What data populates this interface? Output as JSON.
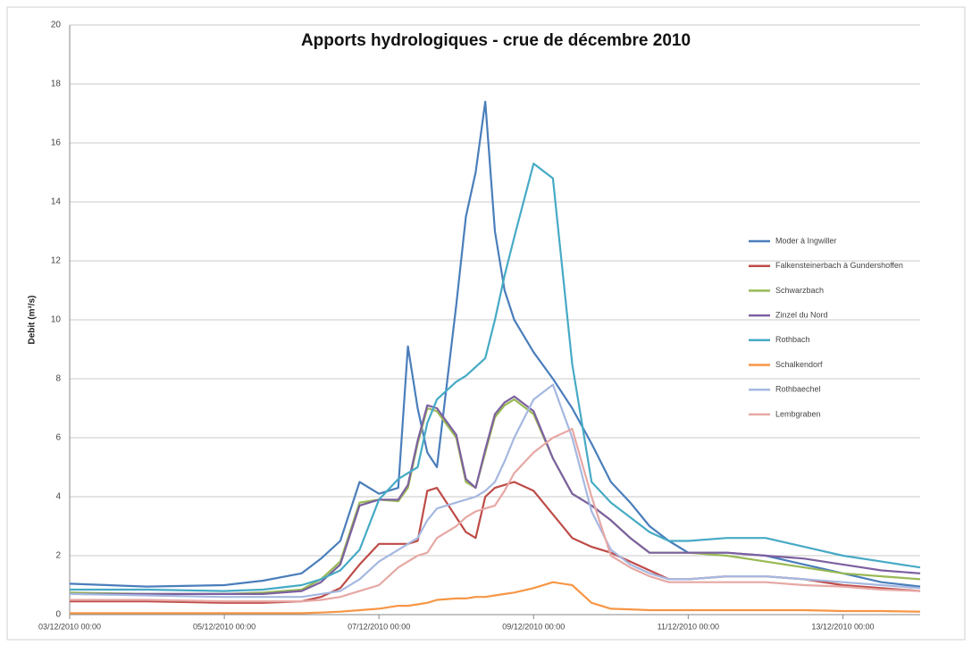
{
  "chart_data": {
    "type": "line",
    "title": "Apports hydrologiques - crue de décembre 2010",
    "y_label": "Debit (m³/s)",
    "x": [
      "03/12/2010 00:00",
      "04/12/2010 00:00",
      "05/12/2010 00:00",
      "05/12/2010 12:00",
      "06/12/2010 00:00",
      "06/12/2010 06:00",
      "06/12/2010 12:00",
      "06/12/2010 18:00",
      "07/12/2010 00:00",
      "07/12/2010 06:00",
      "07/12/2010 09:00",
      "07/12/2010 12:00",
      "07/12/2010 15:00",
      "07/12/2010 18:00",
      "08/12/2010 00:00",
      "08/12/2010 03:00",
      "08/12/2010 06:00",
      "08/12/2010 09:00",
      "08/12/2010 12:00",
      "08/12/2010 15:00",
      "08/12/2010 18:00",
      "09/12/2010 00:00",
      "09/12/2010 06:00",
      "09/12/2010 12:00",
      "09/12/2010 18:00",
      "10/12/2010 00:00",
      "10/12/2010 06:00",
      "10/12/2010 12:00",
      "10/12/2010 18:00",
      "11/12/2010 00:00",
      "11/12/2010 12:00",
      "12/12/2010 00:00",
      "12/12/2010 12:00",
      "13/12/2010 00:00",
      "13/12/2010 12:00",
      "14/12/2010 00:00"
    ],
    "xlim": [
      "03/12/2010 00:00",
      "14/12/2010 00:00"
    ],
    "xticks": [
      "03/12/2010 00:00",
      "05/12/2010 00:00",
      "07/12/2010 00:00",
      "09/12/2010 00:00",
      "11/12/2010 00:00",
      "13/12/2010 00:00"
    ],
    "ylim": [
      0,
      20
    ],
    "yticks": [
      0,
      2,
      4,
      6,
      8,
      10,
      12,
      14,
      16,
      18,
      20
    ],
    "grid": true,
    "legend": "right",
    "series": [
      {
        "name": "Moder à Ingwiller",
        "color": "#4a7ebb",
        "values": [
          1.05,
          0.95,
          1.0,
          1.15,
          1.4,
          1.9,
          2.5,
          4.5,
          4.1,
          4.3,
          9.1,
          7.0,
          5.5,
          5.0,
          10.5,
          13.5,
          15.0,
          17.4,
          13.0,
          11.0,
          10.0,
          8.9,
          8.0,
          7.0,
          5.8,
          4.5,
          3.8,
          3.0,
          2.5,
          2.1,
          2.1,
          2.0,
          1.7,
          1.4,
          1.1,
          0.95
        ]
      },
      {
        "name": "Falkensteinerbach à Gundershoffen",
        "color": "#be4b48",
        "values": [
          0.45,
          0.45,
          0.4,
          0.4,
          0.45,
          0.6,
          0.9,
          1.7,
          2.4,
          2.4,
          2.4,
          2.5,
          4.2,
          4.3,
          3.3,
          2.8,
          2.6,
          4.0,
          4.3,
          4.4,
          4.5,
          4.2,
          3.4,
          2.6,
          2.3,
          2.1,
          1.8,
          1.5,
          1.2,
          1.2,
          1.3,
          1.3,
          1.2,
          1.0,
          0.9,
          0.8
        ]
      },
      {
        "name": "Schwarzbach",
        "color": "#98b954",
        "values": [
          0.75,
          0.7,
          0.7,
          0.75,
          0.85,
          1.2,
          1.8,
          3.8,
          3.9,
          3.85,
          4.3,
          5.8,
          7.0,
          6.9,
          6.0,
          4.5,
          4.3,
          5.5,
          6.7,
          7.1,
          7.3,
          6.8,
          5.3,
          4.1,
          3.7,
          3.2,
          2.6,
          2.1,
          2.1,
          2.1,
          2.0,
          1.8,
          1.6,
          1.4,
          1.3,
          1.2
        ]
      },
      {
        "name": "Zinzel du Nord",
        "color": "#7d60a0",
        "values": [
          0.7,
          0.7,
          0.7,
          0.7,
          0.8,
          1.1,
          1.7,
          3.7,
          3.9,
          3.9,
          4.4,
          5.9,
          7.1,
          7.0,
          6.1,
          4.6,
          4.3,
          5.6,
          6.8,
          7.2,
          7.4,
          6.9,
          5.3,
          4.1,
          3.7,
          3.2,
          2.6,
          2.1,
          2.1,
          2.1,
          2.1,
          2.0,
          1.9,
          1.7,
          1.5,
          1.4
        ]
      },
      {
        "name": "Rothbach",
        "color": "#46aac5",
        "values": [
          0.85,
          0.85,
          0.8,
          0.85,
          1.0,
          1.2,
          1.5,
          2.2,
          3.9,
          4.6,
          4.8,
          5.0,
          6.5,
          7.3,
          7.9,
          8.1,
          8.4,
          8.7,
          10.0,
          11.5,
          12.8,
          15.3,
          14.8,
          8.5,
          4.5,
          3.8,
          3.3,
          2.8,
          2.5,
          2.5,
          2.6,
          2.6,
          2.3,
          2.0,
          1.8,
          1.6
        ]
      },
      {
        "name": "Schalkendorf",
        "color": "#f79646",
        "values": [
          0.05,
          0.05,
          0.05,
          0.05,
          0.05,
          0.07,
          0.1,
          0.15,
          0.2,
          0.3,
          0.3,
          0.35,
          0.4,
          0.5,
          0.55,
          0.55,
          0.6,
          0.6,
          0.65,
          0.7,
          0.75,
          0.9,
          1.1,
          1.0,
          0.4,
          0.2,
          0.18,
          0.15,
          0.15,
          0.15,
          0.15,
          0.15,
          0.15,
          0.12,
          0.12,
          0.1
        ]
      },
      {
        "name": "Rothbaechel",
        "color": "#a5b8e0",
        "values": [
          0.7,
          0.65,
          0.6,
          0.6,
          0.6,
          0.7,
          0.8,
          1.2,
          1.8,
          2.2,
          2.4,
          2.6,
          3.2,
          3.6,
          3.8,
          3.9,
          4.0,
          4.2,
          4.5,
          5.2,
          6.0,
          7.3,
          7.8,
          6.0,
          3.5,
          2.2,
          1.7,
          1.4,
          1.2,
          1.2,
          1.3,
          1.3,
          1.2,
          1.1,
          1.0,
          0.9
        ]
      },
      {
        "name": "Lembgraben",
        "color": "#e6a8a4",
        "values": [
          0.5,
          0.5,
          0.45,
          0.45,
          0.45,
          0.5,
          0.6,
          0.8,
          1.0,
          1.6,
          1.8,
          2.0,
          2.1,
          2.6,
          3.0,
          3.3,
          3.5,
          3.6,
          3.7,
          4.2,
          4.8,
          5.5,
          6.0,
          6.3,
          4.0,
          2.0,
          1.6,
          1.3,
          1.1,
          1.1,
          1.1,
          1.1,
          1.0,
          0.95,
          0.85,
          0.8
        ]
      }
    ]
  }
}
